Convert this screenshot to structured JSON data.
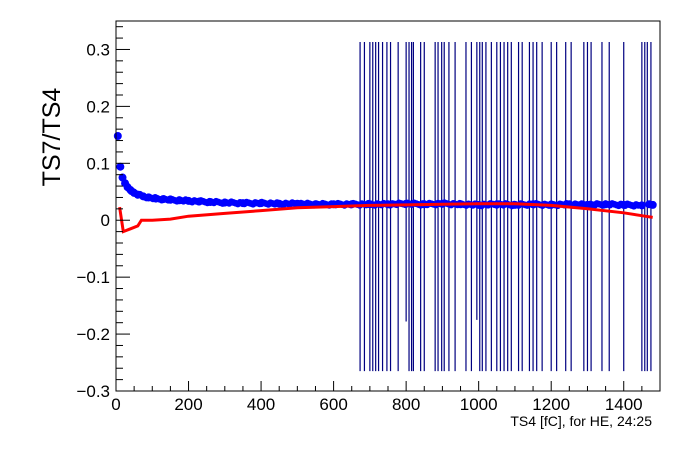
{
  "chart_data": {
    "type": "scatter",
    "title": "",
    "xlabel": "TS4 [fC], for HE, 24:25",
    "ylabel": "TS7/TS4",
    "xlim": [
      0,
      1500
    ],
    "ylim": [
      -0.3,
      0.35
    ],
    "x_ticks": [
      0,
      200,
      400,
      600,
      800,
      1000,
      1200,
      1400
    ],
    "y_ticks": [
      -0.3,
      -0.2,
      -0.1,
      0,
      0.1,
      0.2,
      0.3
    ],
    "x_tick_labels": [
      "0",
      "200",
      "400",
      "600",
      "800",
      "1000",
      "1200",
      "1400"
    ],
    "y_tick_labels": [
      "−0.3",
      "−0.2",
      "−0.1",
      "0",
      "0.1",
      "0.2",
      "0.3"
    ],
    "grid": false,
    "colors": {
      "markers": "#0000ff",
      "error_bars": "#000080",
      "fit_line": "#ff0000"
    },
    "series": [
      {
        "type": "scatter_with_error_bars",
        "x": [
          5,
          12,
          18,
          25,
          32,
          40,
          50,
          60,
          75,
          90,
          110,
          130,
          150,
          175,
          200,
          230,
          260,
          300,
          350,
          400,
          450,
          500,
          550,
          600,
          650,
          700,
          750,
          800,
          850,
          900,
          950,
          1000,
          1050,
          1100,
          1150,
          1200,
          1250,
          1300,
          1350,
          1400,
          1450,
          1470,
          1480
        ],
        "y": [
          0.148,
          0.094,
          0.075,
          0.065,
          0.058,
          0.053,
          0.048,
          0.045,
          0.042,
          0.04,
          0.038,
          0.037,
          0.036,
          0.035,
          0.034,
          0.033,
          0.032,
          0.031,
          0.03,
          0.03,
          0.029,
          0.029,
          0.028,
          0.028,
          0.028,
          0.028,
          0.028,
          0.029,
          0.028,
          0.029,
          0.028,
          0.027,
          0.028,
          0.027,
          0.028,
          0.027,
          0.028,
          0.027,
          0.028,
          0.027,
          0.026,
          0.028,
          0.027
        ],
        "error_bars": {
          "x": [
            673,
            685,
            700,
            708,
            716,
            724,
            735,
            747,
            757,
            778,
            800,
            808,
            815,
            820,
            840,
            850,
            880,
            888,
            898,
            905,
            918,
            935,
            965,
            980,
            995,
            1003,
            1010,
            1020,
            1035,
            1050,
            1060,
            1070,
            1080,
            1090,
            1110,
            1120,
            1140,
            1150,
            1160,
            1175,
            1200,
            1215,
            1240,
            1255,
            1290,
            1300,
            1310,
            1340,
            1360,
            1400,
            1450,
            1458,
            1465,
            1475
          ],
          "low": [
            -0.265,
            -0.265,
            -0.265,
            -0.265,
            -0.265,
            -0.265,
            -0.265,
            -0.265,
            -0.265,
            -0.265,
            -0.178,
            -0.265,
            -0.265,
            -0.265,
            -0.265,
            -0.265,
            -0.265,
            -0.265,
            -0.265,
            -0.265,
            -0.265,
            -0.265,
            -0.265,
            -0.265,
            -0.175,
            -0.265,
            -0.265,
            -0.265,
            -0.265,
            -0.265,
            -0.265,
            -0.265,
            -0.265,
            -0.265,
            -0.265,
            -0.265,
            -0.265,
            -0.265,
            -0.265,
            -0.265,
            -0.265,
            -0.265,
            -0.265,
            -0.265,
            -0.265,
            -0.265,
            -0.265,
            -0.265,
            -0.265,
            -0.265,
            -0.265,
            -0.265,
            -0.265,
            -0.265
          ],
          "high": [
            0.313,
            0.313,
            0.313,
            0.313,
            0.313,
            0.313,
            0.313,
            0.313,
            0.313,
            0.313,
            0.313,
            0.313,
            0.313,
            0.313,
            0.313,
            0.313,
            0.313,
            0.313,
            0.313,
            0.313,
            0.313,
            0.313,
            0.313,
            0.313,
            0.313,
            0.313,
            0.313,
            0.313,
            0.313,
            0.313,
            0.313,
            0.313,
            0.313,
            0.313,
            0.313,
            0.313,
            0.313,
            0.313,
            0.313,
            0.313,
            0.313,
            0.313,
            0.313,
            0.313,
            0.313,
            0.313,
            0.313,
            0.313,
            0.313,
            0.313,
            0.313,
            0.313,
            0.313,
            0.313
          ]
        }
      },
      {
        "type": "line",
        "x": [
          10,
          20,
          40,
          60,
          70,
          100,
          150,
          200,
          300,
          400,
          500,
          600,
          700,
          800,
          900,
          1000,
          1100,
          1200,
          1300,
          1400,
          1450,
          1480
        ],
        "y": [
          0.023,
          -0.02,
          -0.015,
          -0.01,
          0.0,
          0.0,
          0.002,
          0.007,
          0.012,
          0.017,
          0.022,
          0.024,
          0.026,
          0.027,
          0.028,
          0.029,
          0.029,
          0.026,
          0.02,
          0.013,
          0.008,
          0.005
        ]
      }
    ]
  }
}
